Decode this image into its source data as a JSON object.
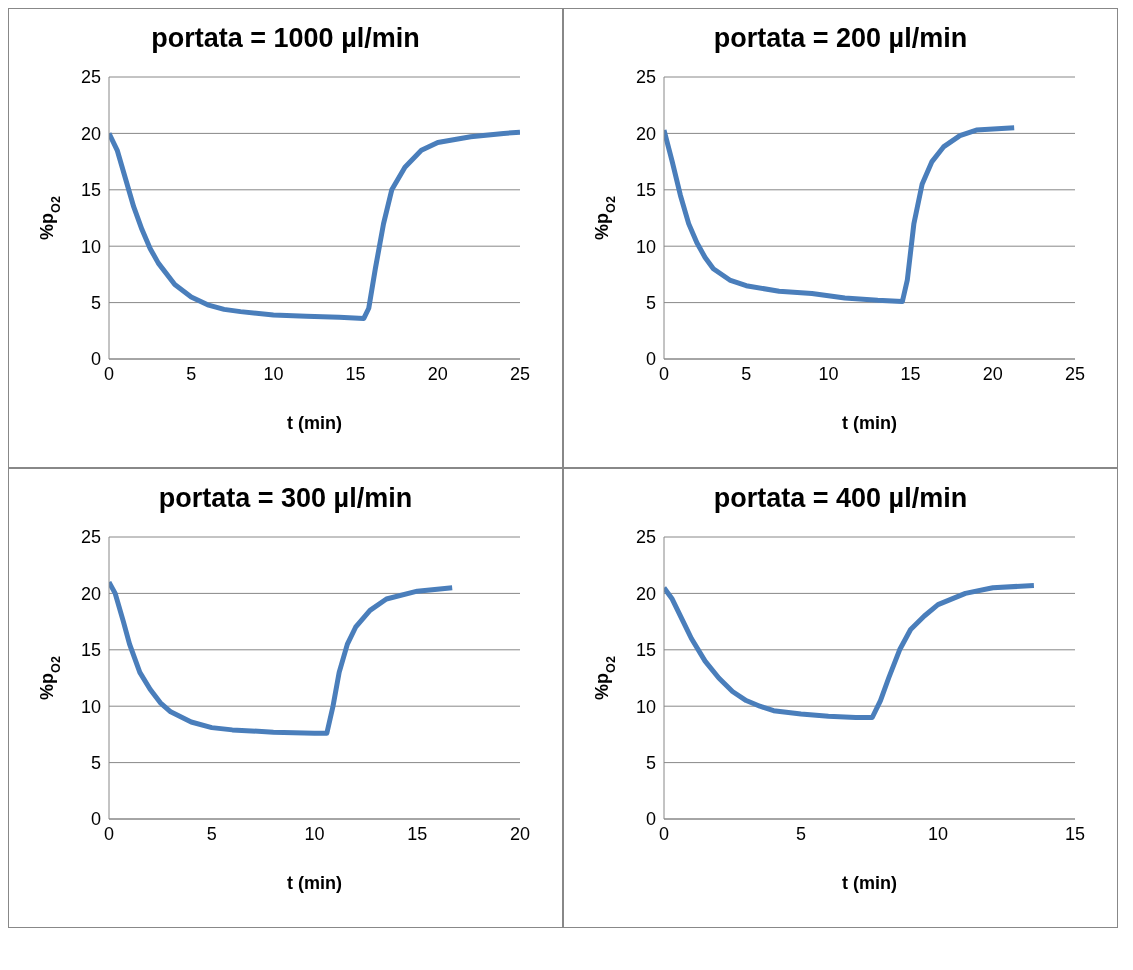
{
  "chart_data": [
    {
      "type": "line",
      "title": "portata = 1000 µl/min",
      "xlabel": "t (min)",
      "ylabel": "%p$_{O2}$",
      "xlim": [
        0,
        25
      ],
      "xticks": [
        0,
        5,
        10,
        15,
        20,
        25
      ],
      "ylim": [
        0,
        25
      ],
      "yticks": [
        0,
        5,
        10,
        15,
        20,
        25
      ],
      "grid": "y",
      "marker": "none",
      "line_style": "solid",
      "series": [
        {
          "color": "#4a7ebb",
          "x": [
            0,
            0.5,
            1,
            1.5,
            2,
            2.5,
            3,
            4,
            5,
            6,
            7,
            8,
            10,
            12,
            14,
            15.5,
            15.8,
            16.2,
            16.7,
            17.2,
            18,
            19,
            20,
            22,
            24,
            25
          ],
          "values": [
            20,
            18.5,
            16,
            13.5,
            11.5,
            9.8,
            8.5,
            6.6,
            5.5,
            4.8,
            4.4,
            4.2,
            3.9,
            3.8,
            3.7,
            3.6,
            4.5,
            8,
            12,
            15,
            17,
            18.5,
            19.2,
            19.7,
            20,
            20.1
          ]
        }
      ]
    },
    {
      "type": "line",
      "title": "portata = 200 µl/min",
      "xlabel": "t (min)",
      "ylabel": "%p$_{O2}$",
      "xlim": [
        0,
        25
      ],
      "xticks": [
        0,
        5,
        10,
        15,
        20,
        25
      ],
      "ylim": [
        0,
        25
      ],
      "yticks": [
        0,
        5,
        10,
        15,
        20,
        25
      ],
      "grid": "y",
      "marker": "none",
      "line_style": "solid",
      "series": [
        {
          "color": "#4a7ebb",
          "x": [
            0,
            0.5,
            1,
            1.5,
            2,
            2.5,
            3,
            4,
            5,
            7,
            9,
            11,
            13,
            14.5,
            14.8,
            15.2,
            15.7,
            16.3,
            17,
            18,
            19,
            21.3
          ],
          "values": [
            20.3,
            17.5,
            14.5,
            12,
            10.3,
            9,
            8,
            7,
            6.5,
            6,
            5.8,
            5.4,
            5.2,
            5.1,
            7,
            12,
            15.5,
            17.5,
            18.8,
            19.8,
            20.3,
            20.5
          ]
        }
      ]
    },
    {
      "type": "line",
      "title": "portata = 300 µl/min",
      "xlabel": "t (min)",
      "ylabel": "%p$_{O2}$",
      "xlim": [
        0,
        20
      ],
      "xticks": [
        0,
        5,
        10,
        15,
        20
      ],
      "ylim": [
        0,
        25
      ],
      "yticks": [
        0,
        5,
        10,
        15,
        20,
        25
      ],
      "grid": "y",
      "marker": "none",
      "line_style": "solid",
      "series": [
        {
          "color": "#4a7ebb",
          "x": [
            0,
            0.3,
            0.7,
            1,
            1.5,
            2,
            2.5,
            3,
            4,
            5,
            6,
            8,
            10,
            10.6,
            10.9,
            11.2,
            11.6,
            12,
            12.7,
            13.5,
            15,
            16.7
          ],
          "values": [
            21,
            20,
            17.5,
            15.5,
            13,
            11.5,
            10.3,
            9.5,
            8.6,
            8.1,
            7.9,
            7.7,
            7.6,
            7.6,
            10,
            13,
            15.5,
            17,
            18.5,
            19.5,
            20.2,
            20.5
          ]
        }
      ]
    },
    {
      "type": "line",
      "title": "portata = 400 µl/min",
      "xlabel": "t (min)",
      "ylabel": "%p$_{O2}$",
      "xlim": [
        0,
        15
      ],
      "xticks": [
        0,
        5,
        10,
        15
      ],
      "ylim": [
        0,
        25
      ],
      "yticks": [
        0,
        5,
        10,
        15,
        20,
        25
      ],
      "grid": "y",
      "marker": "none",
      "line_style": "solid",
      "series": [
        {
          "color": "#4a7ebb",
          "x": [
            0,
            0.3,
            0.7,
            1,
            1.5,
            2,
            2.5,
            3,
            3.5,
            4,
            5,
            6,
            7,
            7.6,
            7.9,
            8.2,
            8.6,
            9,
            9.5,
            10,
            11,
            12,
            13.5
          ],
          "values": [
            20.5,
            19.5,
            17.5,
            16,
            14,
            12.5,
            11.3,
            10.5,
            10,
            9.6,
            9.3,
            9.1,
            9,
            9,
            10.5,
            12.5,
            15,
            16.8,
            18,
            19,
            20,
            20.5,
            20.7
          ]
        }
      ]
    }
  ]
}
